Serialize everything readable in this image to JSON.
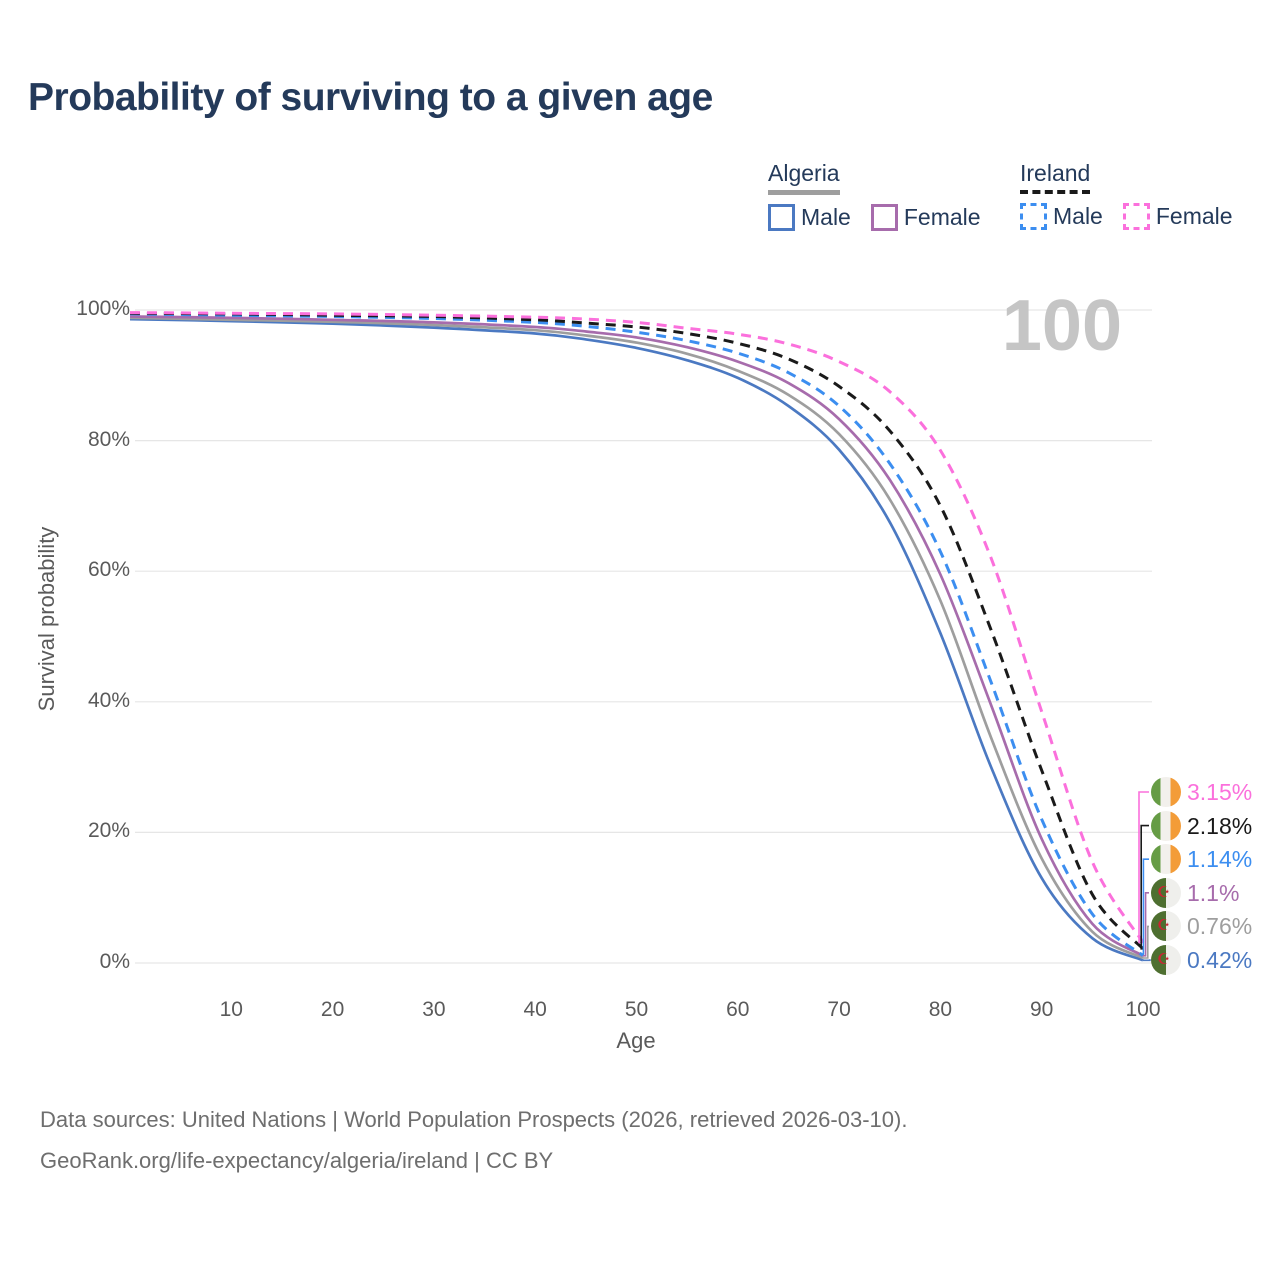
{
  "title": "Probability of surviving to a given age",
  "watermark_age": "100",
  "legend": {
    "groups": [
      {
        "country": "Algeria",
        "line_style": "solid",
        "items": [
          {
            "label": "Male"
          },
          {
            "label": "Female"
          }
        ]
      },
      {
        "country": "Ireland",
        "line_style": "dashed",
        "items": [
          {
            "label": "Male"
          },
          {
            "label": "Female"
          }
        ]
      }
    ]
  },
  "axes": {
    "y_label": "Survival probability",
    "x_label": "Age",
    "y_ticks": [
      {
        "label": "0%",
        "value": 0
      },
      {
        "label": "20%",
        "value": 20
      },
      {
        "label": "40%",
        "value": 40
      },
      {
        "label": "60%",
        "value": 60
      },
      {
        "label": "80%",
        "value": 80
      },
      {
        "label": "100%",
        "value": 100
      }
    ],
    "x_ticks": [
      {
        "label": "10",
        "value": 10
      },
      {
        "label": "20",
        "value": 20
      },
      {
        "label": "30",
        "value": 30
      },
      {
        "label": "40",
        "value": 40
      },
      {
        "label": "50",
        "value": 50
      },
      {
        "label": "60",
        "value": 60
      },
      {
        "label": "70",
        "value": 70
      },
      {
        "label": "80",
        "value": 80
      },
      {
        "label": "90",
        "value": 90
      },
      {
        "label": "100",
        "value": 100
      }
    ]
  },
  "colors": {
    "title_text": "#243a5a",
    "axis_text": "#5a5a5a",
    "gridline": "#e6e6e6",
    "watermark": "#c5c5c5",
    "source_text": "#6e6e6e",
    "algeria_male": "#4b79c2",
    "algeria_female": "#a76cac",
    "algeria_both": "#9e9e9e",
    "ireland_male": "#3c8ef0",
    "ireland_female": "#fb70dc",
    "ireland_both": "#1a1a1a",
    "flag_ireland_green": "#669c45",
    "flag_ireland_orange": "#f39c38",
    "flag_algeria_green": "#4e6f30",
    "flag_algeria_red": "#cc2433"
  },
  "sources": {
    "lines": [
      "Data sources: United Nations | World Population Prospects (2026, retrieved 2026-03-10).",
      "GeoRank.org/life-expectancy/algeria/ireland | CC BY"
    ]
  },
  "chart_data": {
    "type": "line",
    "title": "Probability of surviving to a given age",
    "xlabel": "Age",
    "ylabel": "Survival probability",
    "xlim": [
      0,
      100
    ],
    "ylim": [
      0,
      100
    ],
    "grid": "horizontal",
    "legend_position": "top-right",
    "x_ages": [
      0,
      10,
      20,
      30,
      40,
      45,
      50,
      55,
      60,
      65,
      70,
      75,
      80,
      85,
      90,
      95,
      100
    ],
    "series": [
      {
        "id": "ireland-female",
        "name": "Ireland Female",
        "country": "Ireland",
        "sex": "Female",
        "style": "dashed",
        "color": "#fb70dc",
        "flag": "ireland",
        "end_label": "3.15%",
        "values": [
          99.6,
          99.5,
          99.4,
          99.2,
          98.9,
          98.6,
          98.1,
          97.2,
          96.3,
          94.8,
          92.1,
          87.5,
          78.5,
          62.0,
          38.5,
          15.5,
          3.15
        ]
      },
      {
        "id": "ireland-both",
        "name": "Ireland (both sexes)",
        "country": "Ireland",
        "sex": "Both",
        "style": "dashed",
        "color": "#1a1a1a",
        "flag": "ireland",
        "end_label": "2.18%",
        "values": [
          99.5,
          99.4,
          99.2,
          99.0,
          98.5,
          98.0,
          97.4,
          96.4,
          94.9,
          92.5,
          88.3,
          81.5,
          70.0,
          51.0,
          29.5,
          10.5,
          2.18
        ]
      },
      {
        "id": "ireland-male",
        "name": "Ireland Male",
        "country": "Ireland",
        "sex": "Male",
        "style": "dashed",
        "color": "#3c8ef0",
        "flag": "ireland",
        "end_label": "1.14%",
        "values": [
          99.4,
          99.2,
          99.0,
          98.7,
          98.1,
          97.5,
          96.6,
          95.3,
          93.4,
          90.4,
          85.3,
          76.5,
          63.0,
          43.0,
          22.0,
          7.5,
          1.14
        ]
      },
      {
        "id": "algeria-female",
        "name": "Algeria Female",
        "country": "Algeria",
        "sex": "Female",
        "style": "solid",
        "color": "#a76cac",
        "flag": "algeria",
        "end_label": "1.1%",
        "values": [
          99.0,
          98.8,
          98.5,
          98.1,
          97.4,
          96.7,
          95.8,
          94.3,
          92.1,
          88.8,
          83.3,
          74.0,
          59.5,
          39.5,
          19.0,
          6.0,
          1.1
        ]
      },
      {
        "id": "algeria-both",
        "name": "Algeria (both sexes)",
        "country": "Algeria",
        "sex": "Both",
        "style": "solid",
        "color": "#9e9e9e",
        "flag": "algeria",
        "end_label": "0.76%",
        "values": [
          98.8,
          98.5,
          98.2,
          97.7,
          96.9,
          96.1,
          95.0,
          93.3,
          90.7,
          87.0,
          81.0,
          71.0,
          55.5,
          34.5,
          16.0,
          4.8,
          0.76
        ]
      },
      {
        "id": "algeria-male",
        "name": "Algeria Male",
        "country": "Algeria",
        "sex": "Male",
        "style": "solid",
        "color": "#4b79c2",
        "flag": "algeria",
        "end_label": "0.42%",
        "values": [
          98.6,
          98.3,
          97.9,
          97.3,
          96.4,
          95.5,
          94.2,
          92.3,
          89.6,
          85.3,
          78.6,
          67.5,
          50.5,
          30.0,
          13.0,
          3.8,
          0.42
        ]
      }
    ]
  }
}
